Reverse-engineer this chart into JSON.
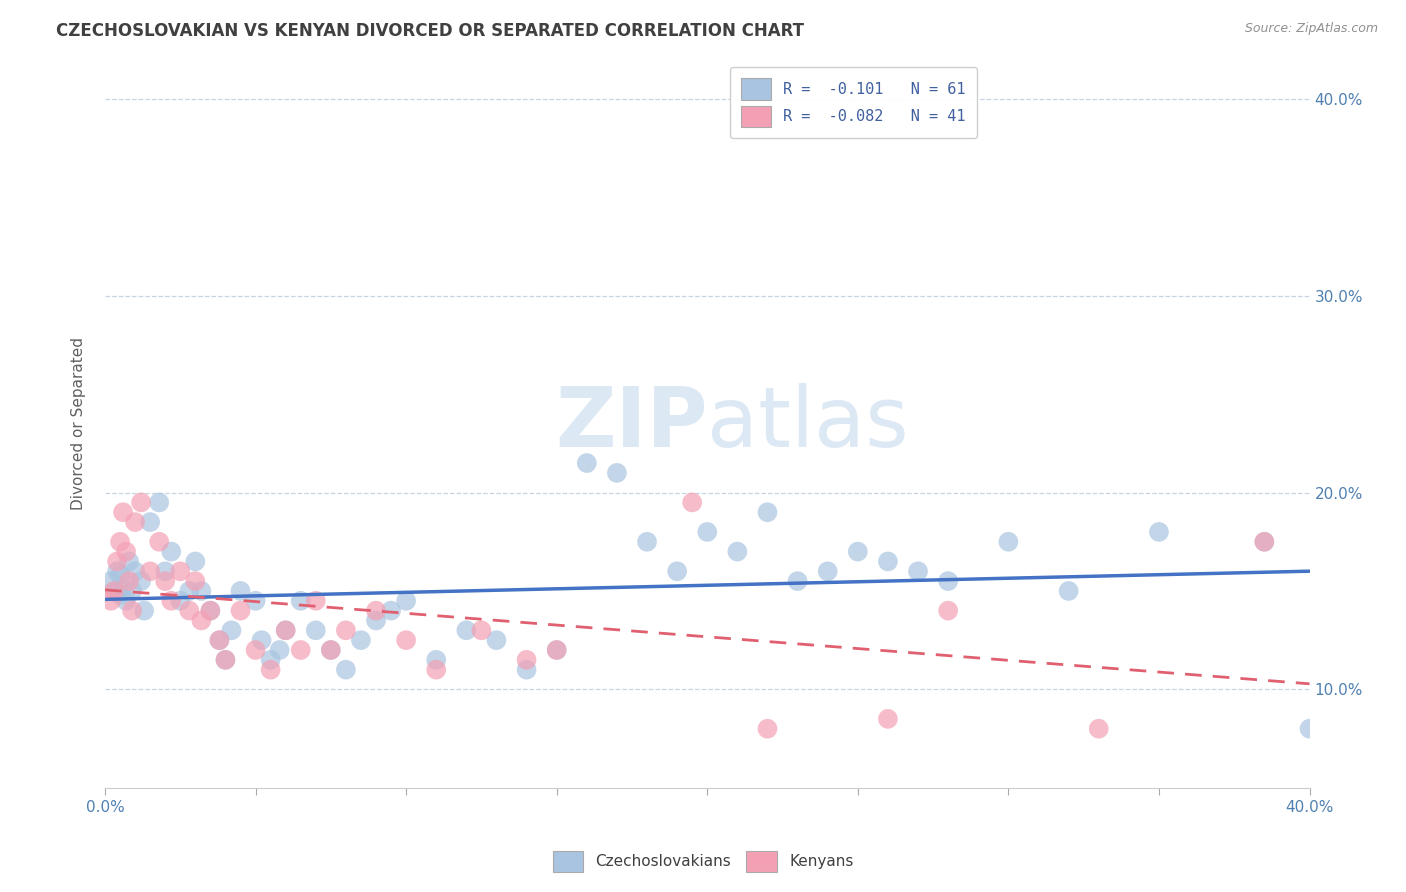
{
  "title": "CZECHOSLOVAKIAN VS KENYAN DIVORCED OR SEPARATED CORRELATION CHART",
  "source": "Source: ZipAtlas.com",
  "ylabel": "Divorced or Separated",
  "legend_blue": {
    "R": "-0.101",
    "N": "61",
    "label": "Czechoslovakians"
  },
  "legend_pink": {
    "R": "-0.082",
    "N": "41",
    "label": "Kenyans"
  },
  "blue_color": "#a8c4e0",
  "pink_color": "#f4a0b4",
  "blue_line_color": "#4472c4",
  "pink_line_color": "#e06070",
  "watermark_color": "#dce8f4",
  "blue_scatter": [
    [
      0.2,
      15.5
    ],
    [
      0.3,
      15.0
    ],
    [
      0.4,
      16.0
    ],
    [
      0.5,
      14.8
    ],
    [
      0.5,
      15.8
    ],
    [
      0.6,
      15.2
    ],
    [
      0.7,
      14.5
    ],
    [
      0.8,
      16.5
    ],
    [
      0.9,
      15.0
    ],
    [
      1.0,
      16.0
    ],
    [
      1.2,
      15.5
    ],
    [
      1.3,
      14.0
    ],
    [
      1.5,
      18.5
    ],
    [
      1.8,
      19.5
    ],
    [
      2.0,
      16.0
    ],
    [
      2.2,
      17.0
    ],
    [
      2.5,
      14.5
    ],
    [
      2.8,
      15.0
    ],
    [
      3.0,
      16.5
    ],
    [
      3.2,
      15.0
    ],
    [
      3.5,
      14.0
    ],
    [
      3.8,
      12.5
    ],
    [
      4.0,
      11.5
    ],
    [
      4.2,
      13.0
    ],
    [
      4.5,
      15.0
    ],
    [
      5.0,
      14.5
    ],
    [
      5.2,
      12.5
    ],
    [
      5.5,
      11.5
    ],
    [
      5.8,
      12.0
    ],
    [
      6.0,
      13.0
    ],
    [
      6.5,
      14.5
    ],
    [
      7.0,
      13.0
    ],
    [
      7.5,
      12.0
    ],
    [
      8.0,
      11.0
    ],
    [
      8.5,
      12.5
    ],
    [
      9.0,
      13.5
    ],
    [
      9.5,
      14.0
    ],
    [
      10.0,
      14.5
    ],
    [
      11.0,
      11.5
    ],
    [
      12.0,
      13.0
    ],
    [
      13.0,
      12.5
    ],
    [
      14.0,
      11.0
    ],
    [
      15.0,
      12.0
    ],
    [
      16.0,
      21.5
    ],
    [
      17.0,
      21.0
    ],
    [
      18.0,
      17.5
    ],
    [
      19.0,
      16.0
    ],
    [
      20.0,
      18.0
    ],
    [
      21.0,
      17.0
    ],
    [
      22.0,
      19.0
    ],
    [
      23.0,
      15.5
    ],
    [
      24.0,
      16.0
    ],
    [
      25.0,
      17.0
    ],
    [
      26.0,
      16.5
    ],
    [
      27.0,
      16.0
    ],
    [
      28.0,
      15.5
    ],
    [
      30.0,
      17.5
    ],
    [
      32.0,
      15.0
    ],
    [
      35.0,
      18.0
    ],
    [
      38.5,
      17.5
    ],
    [
      40.0,
      8.0
    ]
  ],
  "pink_scatter": [
    [
      0.2,
      14.5
    ],
    [
      0.3,
      15.0
    ],
    [
      0.4,
      16.5
    ],
    [
      0.5,
      17.5
    ],
    [
      0.6,
      19.0
    ],
    [
      0.7,
      17.0
    ],
    [
      0.8,
      15.5
    ],
    [
      0.9,
      14.0
    ],
    [
      1.0,
      18.5
    ],
    [
      1.2,
      19.5
    ],
    [
      1.5,
      16.0
    ],
    [
      1.8,
      17.5
    ],
    [
      2.0,
      15.5
    ],
    [
      2.2,
      14.5
    ],
    [
      2.5,
      16.0
    ],
    [
      2.8,
      14.0
    ],
    [
      3.0,
      15.5
    ],
    [
      3.2,
      13.5
    ],
    [
      3.5,
      14.0
    ],
    [
      3.8,
      12.5
    ],
    [
      4.0,
      11.5
    ],
    [
      4.5,
      14.0
    ],
    [
      5.0,
      12.0
    ],
    [
      5.5,
      11.0
    ],
    [
      6.0,
      13.0
    ],
    [
      6.5,
      12.0
    ],
    [
      7.0,
      14.5
    ],
    [
      7.5,
      12.0
    ],
    [
      8.0,
      13.0
    ],
    [
      9.0,
      14.0
    ],
    [
      10.0,
      12.5
    ],
    [
      11.0,
      11.0
    ],
    [
      12.5,
      13.0
    ],
    [
      14.0,
      11.5
    ],
    [
      15.0,
      12.0
    ],
    [
      19.5,
      19.5
    ],
    [
      22.0,
      8.0
    ],
    [
      26.0,
      8.5
    ],
    [
      28.0,
      14.0
    ],
    [
      33.0,
      8.0
    ],
    [
      38.5,
      17.5
    ]
  ],
  "xmin": 0.0,
  "xmax": 40.0,
  "ymin": 5.0,
  "ymax": 42.0,
  "ytick_values": [
    10.0,
    20.0,
    30.0,
    40.0
  ],
  "ytick_labels": [
    "10.0%",
    "20.0%",
    "30.0%",
    "40.0%"
  ],
  "xtick_minor": [
    5,
    10,
    15,
    20,
    25,
    30,
    35
  ],
  "grid_color": "#c8d4e4",
  "background_color": "#ffffff",
  "title_color": "#404040",
  "source_color": "#909090",
  "tick_label_color": "#5080b0"
}
